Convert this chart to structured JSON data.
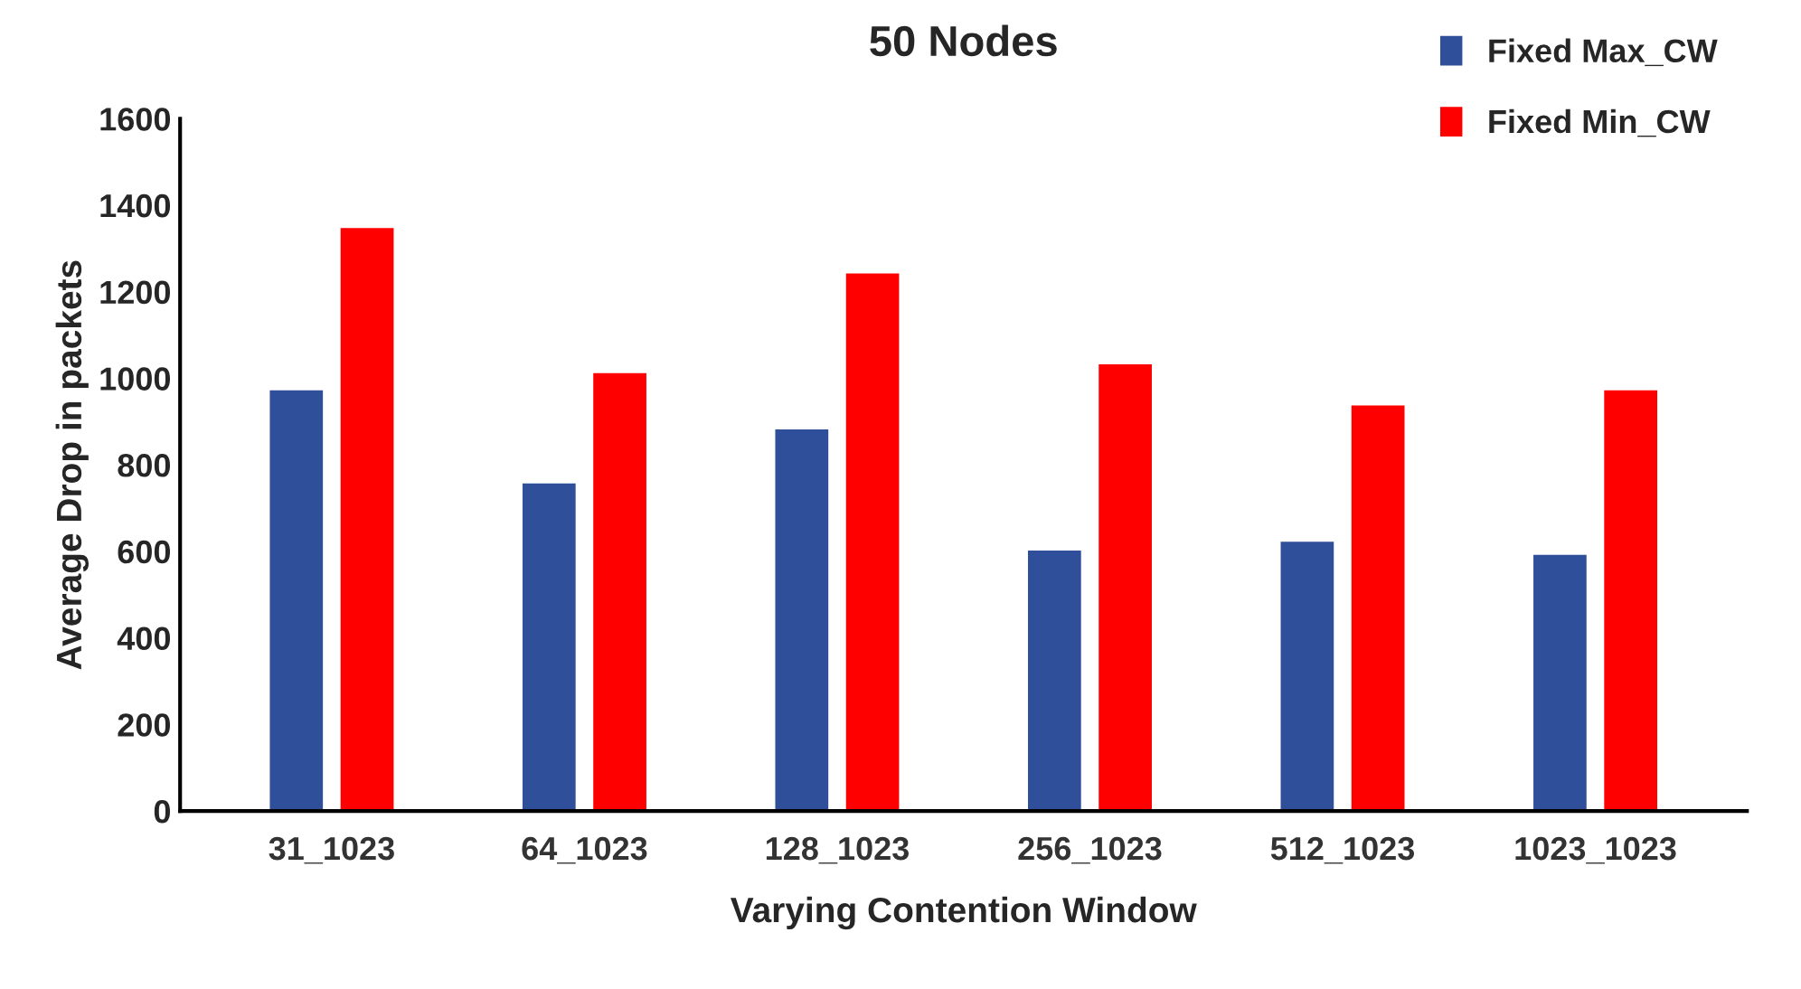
{
  "chart_data": {
    "type": "bar",
    "title": "50 Nodes",
    "xlabel": "Varying Contention Window",
    "ylabel": "Average Drop in packets",
    "categories": [
      "31_1023",
      "64_1023",
      "128_1023",
      "256_1023",
      "512_1023",
      "1023_1023"
    ],
    "series": [
      {
        "name": "Fixed Max_CW",
        "color": "#2f4f9a",
        "values": [
          975,
          760,
          885,
          605,
          625,
          595
        ]
      },
      {
        "name": "Fixed Min_CW",
        "color": "#ff0000",
        "values": [
          1350,
          1015,
          1245,
          1035,
          940,
          975
        ]
      }
    ],
    "ylim": [
      0,
      1600
    ],
    "yticks": [
      0,
      200,
      400,
      600,
      800,
      1000,
      1200,
      1400,
      1600
    ],
    "grid": false,
    "legend": "top right"
  }
}
